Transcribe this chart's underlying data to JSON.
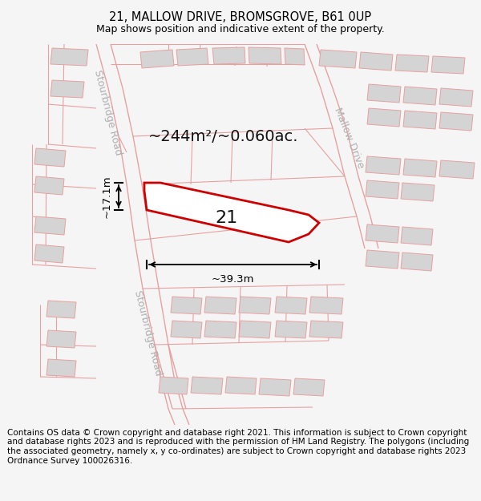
{
  "title": "21, MALLOW DRIVE, BROMSGROVE, B61 0UP",
  "subtitle": "Map shows position and indicative extent of the property.",
  "footer": "Contains OS data © Crown copyright and database right 2021. This information is subject to Crown copyright and database rights 2023 and is reproduced with the permission of HM Land Registry. The polygons (including the associated geometry, namely x, y co-ordinates) are subject to Crown copyright and database rights 2023 Ordnance Survey 100026316.",
  "bg_color": "#f5f5f5",
  "map_bg": "#ffffff",
  "area_label": "~244m²/~0.060ac.",
  "plot_number": "21",
  "width_label": "~39.3m",
  "height_label": "~17.1m",
  "road_color": "#e8a0a0",
  "building_color": "#d4d4d4",
  "plot_fill": "#ffffff",
  "plot_edge": "#cc0000",
  "dim_color": "#000000",
  "road_label_color": "#b0b0b0",
  "stourbridge_road_label": "Stourbridge Road",
  "mallow_drive_label": "Mallow Drive",
  "title_fontsize": 10.5,
  "subtitle_fontsize": 9,
  "footer_fontsize": 7.5,
  "area_fontsize": 14,
  "plot_num_fontsize": 16,
  "dim_fontsize": 9.5,
  "road_label_fontsize": 9
}
